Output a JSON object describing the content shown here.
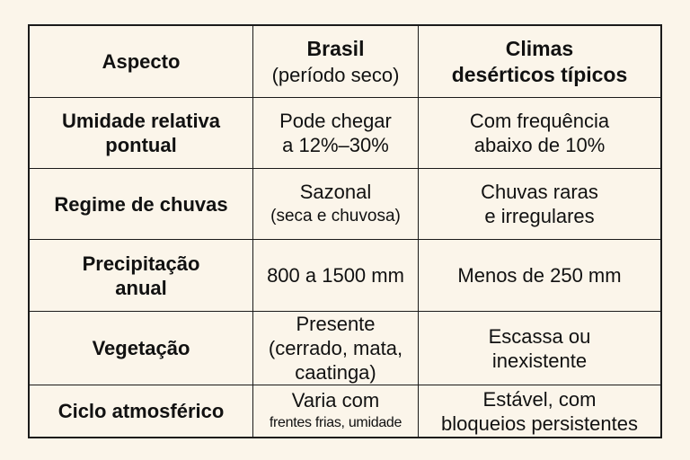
{
  "header": {
    "aspect": "Aspecto",
    "brasil_title": "Brasil",
    "brasil_subtitle": "(período seco)",
    "desert_line1": "Climas",
    "desert_line2": "desérticos típicos"
  },
  "rows": [
    {
      "aspect": [
        "Umidade relativa",
        "pontual"
      ],
      "brasil": [
        "Pode chegar",
        "a 12%–30%"
      ],
      "desert": [
        "Com frequência",
        "abaixo de 10%"
      ]
    },
    {
      "aspect": [
        "Regime de chuvas"
      ],
      "brasil": [
        "Sazonal",
        "(seca e chuvosa)"
      ],
      "desert": [
        "Chuvas raras",
        "e irregulares"
      ]
    },
    {
      "aspect": [
        "Precipitação",
        "anual"
      ],
      "brasil": [
        "800 a 1500 mm"
      ],
      "desert": [
        "Menos de 250 mm"
      ]
    },
    {
      "aspect": [
        "Vegetação"
      ],
      "brasil": [
        "Presente",
        "(cerrado, mata,",
        "caatinga)"
      ],
      "desert": [
        "Escassa ou",
        "inexistente"
      ]
    },
    {
      "aspect": [
        "Ciclo atmosférico"
      ],
      "brasil": [
        "Varia com",
        "frentes frias, umidade"
      ],
      "desert": [
        "Estável, com",
        "bloqueios persistentes"
      ]
    }
  ]
}
